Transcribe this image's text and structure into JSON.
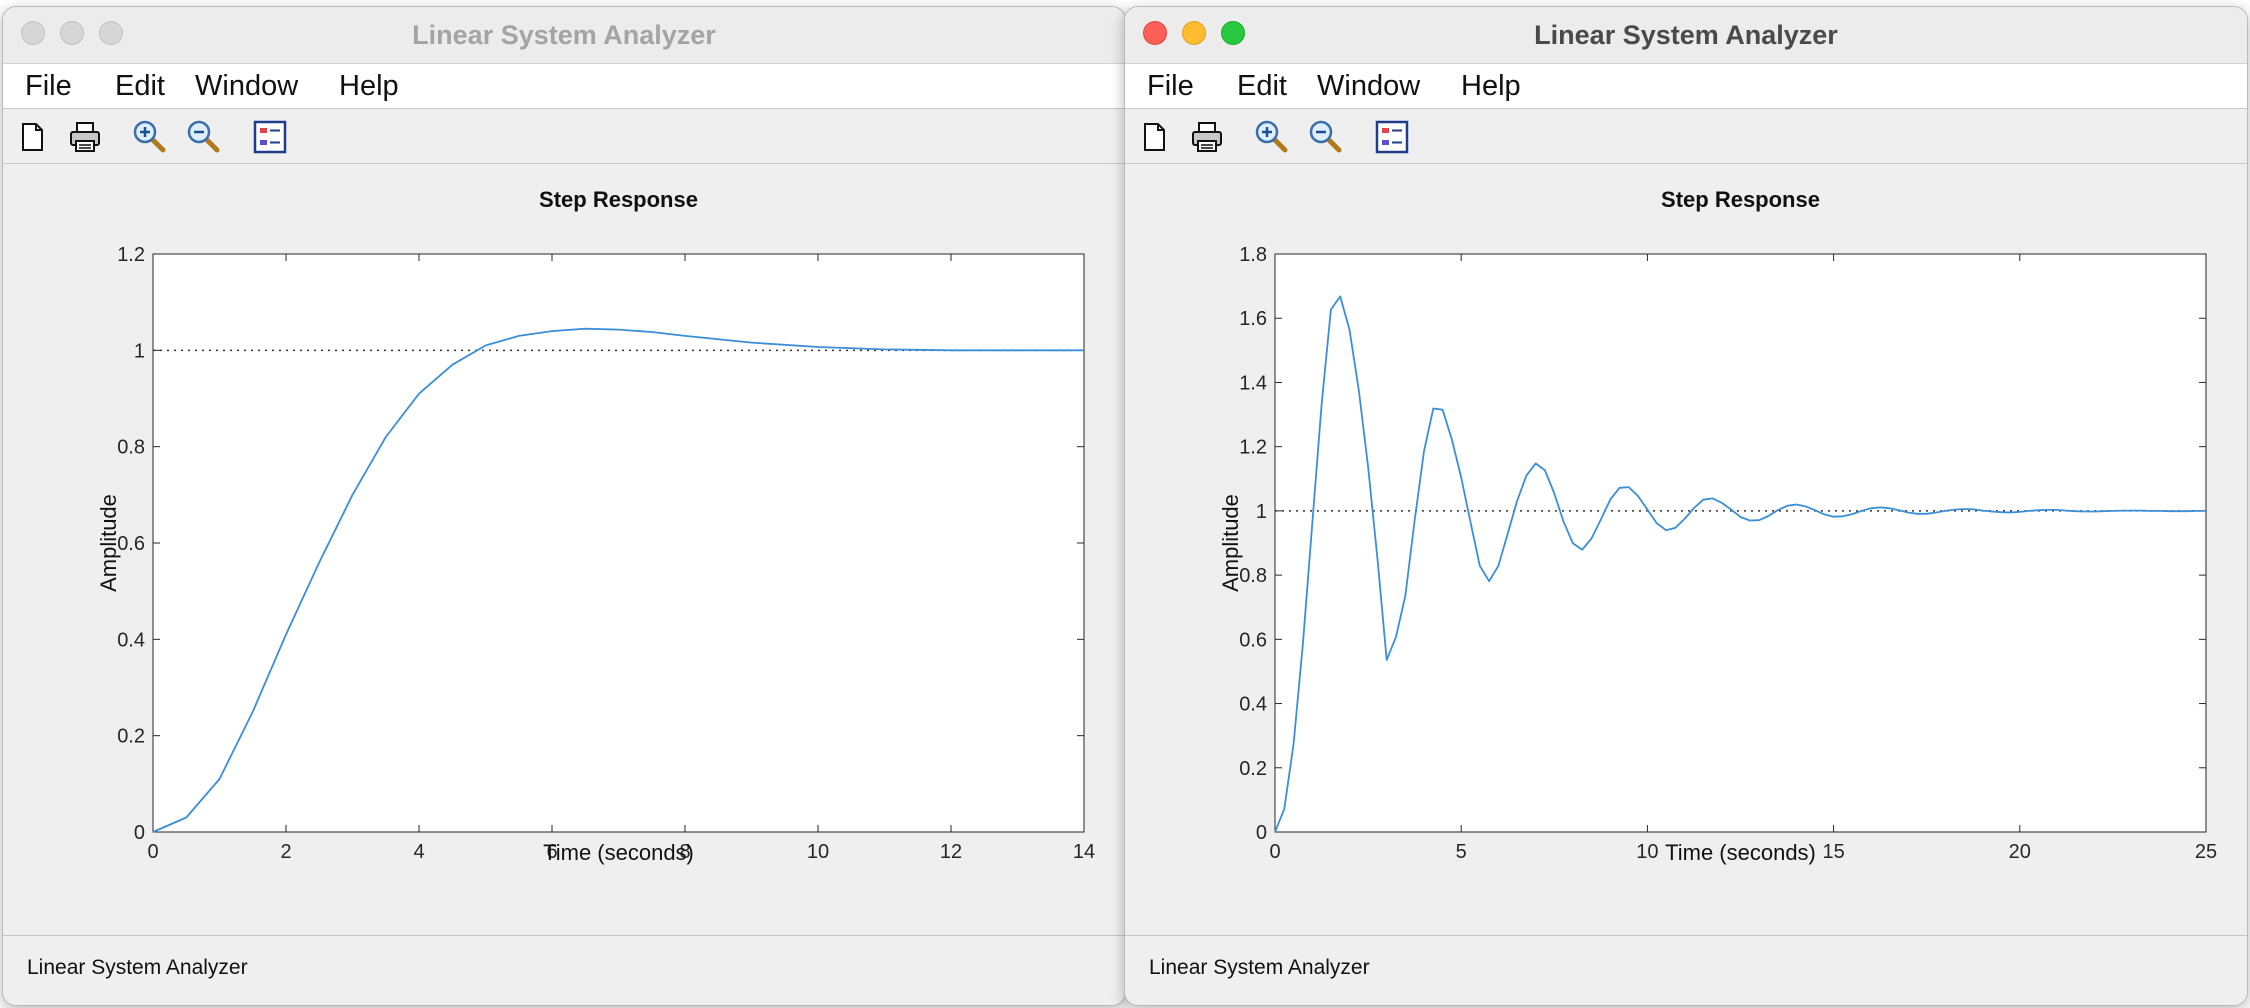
{
  "windows": [
    {
      "title": "Linear System Analyzer",
      "menu": [
        "File",
        "Edit",
        "Window",
        "Help"
      ],
      "toolbar_icons": [
        "new-figure-icon",
        "print-icon",
        "zoom-in-icon",
        "zoom-out-icon",
        "legend-icon"
      ],
      "status": "Linear System Analyzer",
      "chart_data": {
        "type": "line",
        "title": "Step Response",
        "xlabel": "Time (seconds)",
        "ylabel": "Amplitude",
        "xlim": [
          0,
          14
        ],
        "ylim": [
          0,
          1.2
        ],
        "xticks": [
          "0",
          "2",
          "4",
          "6",
          "8",
          "10",
          "12",
          "14"
        ],
        "yticks": [
          "0",
          "0.2",
          "0.4",
          "0.6",
          "0.8",
          "1",
          "1.2"
        ],
        "reference_line": 1,
        "x": [
          0,
          0.5,
          1,
          1.5,
          2,
          2.5,
          3,
          3.5,
          4,
          4.5,
          5,
          5.5,
          6,
          6.5,
          7,
          7.5,
          8,
          9,
          10,
          11,
          12,
          13,
          14
        ],
        "y": [
          0,
          0.03,
          0.11,
          0.25,
          0.41,
          0.56,
          0.7,
          0.82,
          0.91,
          0.97,
          1.01,
          1.03,
          1.04,
          1.045,
          1.043,
          1.038,
          1.03,
          1.016,
          1.007,
          1.002,
          1.0,
          1.0,
          1.0
        ],
        "line_color": "#3b8ed8"
      }
    },
    {
      "title": "Linear System Analyzer",
      "menu": [
        "File",
        "Edit",
        "Window",
        "Help"
      ],
      "toolbar_icons": [
        "new-figure-icon",
        "print-icon",
        "zoom-in-icon",
        "zoom-out-icon",
        "legend-icon"
      ],
      "status": "Linear System Analyzer",
      "chart_data": {
        "type": "line",
        "title": "Step Response",
        "xlabel": "Time (seconds)",
        "ylabel": "Amplitude",
        "xlim": [
          0,
          25
        ],
        "ylim": [
          0,
          1.8
        ],
        "xticks": [
          "0",
          "5",
          "10",
          "15",
          "20",
          "25"
        ],
        "yticks": [
          "0",
          "0.2",
          "0.4",
          "0.6",
          "0.8",
          "1",
          "1.2",
          "1.4",
          "1.6",
          "1.8"
        ],
        "reference_line": 1,
        "x": [
          0,
          0.25,
          0.5,
          0.75,
          1.0,
          1.25,
          1.5,
          1.75,
          2.0,
          2.25,
          2.5,
          2.75,
          3.0,
          3.25,
          3.5,
          3.75,
          4.0,
          4.25,
          4.5,
          4.75,
          5.0,
          5.25,
          5.5,
          5.75,
          6.0,
          6.25,
          6.5,
          6.75,
          7.0,
          7.25,
          7.5,
          7.75,
          8.0,
          8.25,
          8.5,
          8.75,
          9.0,
          9.25,
          9.5,
          9.75,
          10.0,
          10.25,
          10.5,
          10.75,
          11.0,
          11.25,
          11.5,
          11.75,
          12.0,
          12.25,
          12.5,
          12.75,
          13.0,
          13.25,
          13.5,
          13.75,
          14.0,
          14.25,
          14.5,
          14.75,
          15.0,
          15.25,
          15.5,
          15.75,
          16.0,
          16.25,
          16.5,
          16.75,
          17.0,
          17.25,
          17.5,
          17.75,
          18.0,
          18.25,
          18.5,
          18.75,
          19.0,
          19.25,
          19.5,
          19.75,
          20.0,
          20.25,
          20.5,
          20.75,
          21.0,
          21.25,
          21.5,
          21.75,
          22.0,
          22.25,
          22.5,
          22.75,
          23.0,
          23.25,
          23.5,
          23.75,
          24.0,
          24.25,
          24.5,
          24.75,
          25.0
        ],
        "y": [
          0,
          0.072,
          0.275,
          0.586,
          0.957,
          1.331,
          1.627,
          1.668,
          1.564,
          1.376,
          1.137,
          0.853,
          0.536,
          0.608,
          0.735,
          0.969,
          1.186,
          1.319,
          1.315,
          1.222,
          1.104,
          0.965,
          0.829,
          0.781,
          0.829,
          0.93,
          1.031,
          1.11,
          1.148,
          1.126,
          1.054,
          0.966,
          0.899,
          0.879,
          0.914,
          0.973,
          1.035,
          1.072,
          1.074,
          1.046,
          1.004,
          0.962,
          0.94,
          0.947,
          0.975,
          1.009,
          1.035,
          1.039,
          1.025,
          1.004,
          0.981,
          0.97,
          0.971,
          0.984,
          1.002,
          1.016,
          1.02,
          1.014,
          1.002,
          0.989,
          0.982,
          0.983,
          0.99,
          1.0,
          1.008,
          1.011,
          1.008,
          1.002,
          0.995,
          0.991,
          0.991,
          0.995,
          1.0,
          1.004,
          1.006,
          1.005,
          1.001,
          0.998,
          0.996,
          0.995,
          0.997,
          1.0,
          1.002,
          1.003,
          1.003,
          1.001,
          0.999,
          0.998,
          0.998,
          0.999,
          1.0,
          1.001,
          1.001,
          1.001,
          1.0,
          1.0,
          0.999,
          0.999,
          0.999,
          1.0,
          1.0
        ],
        "line_color": "#3b8ed8"
      }
    }
  ]
}
